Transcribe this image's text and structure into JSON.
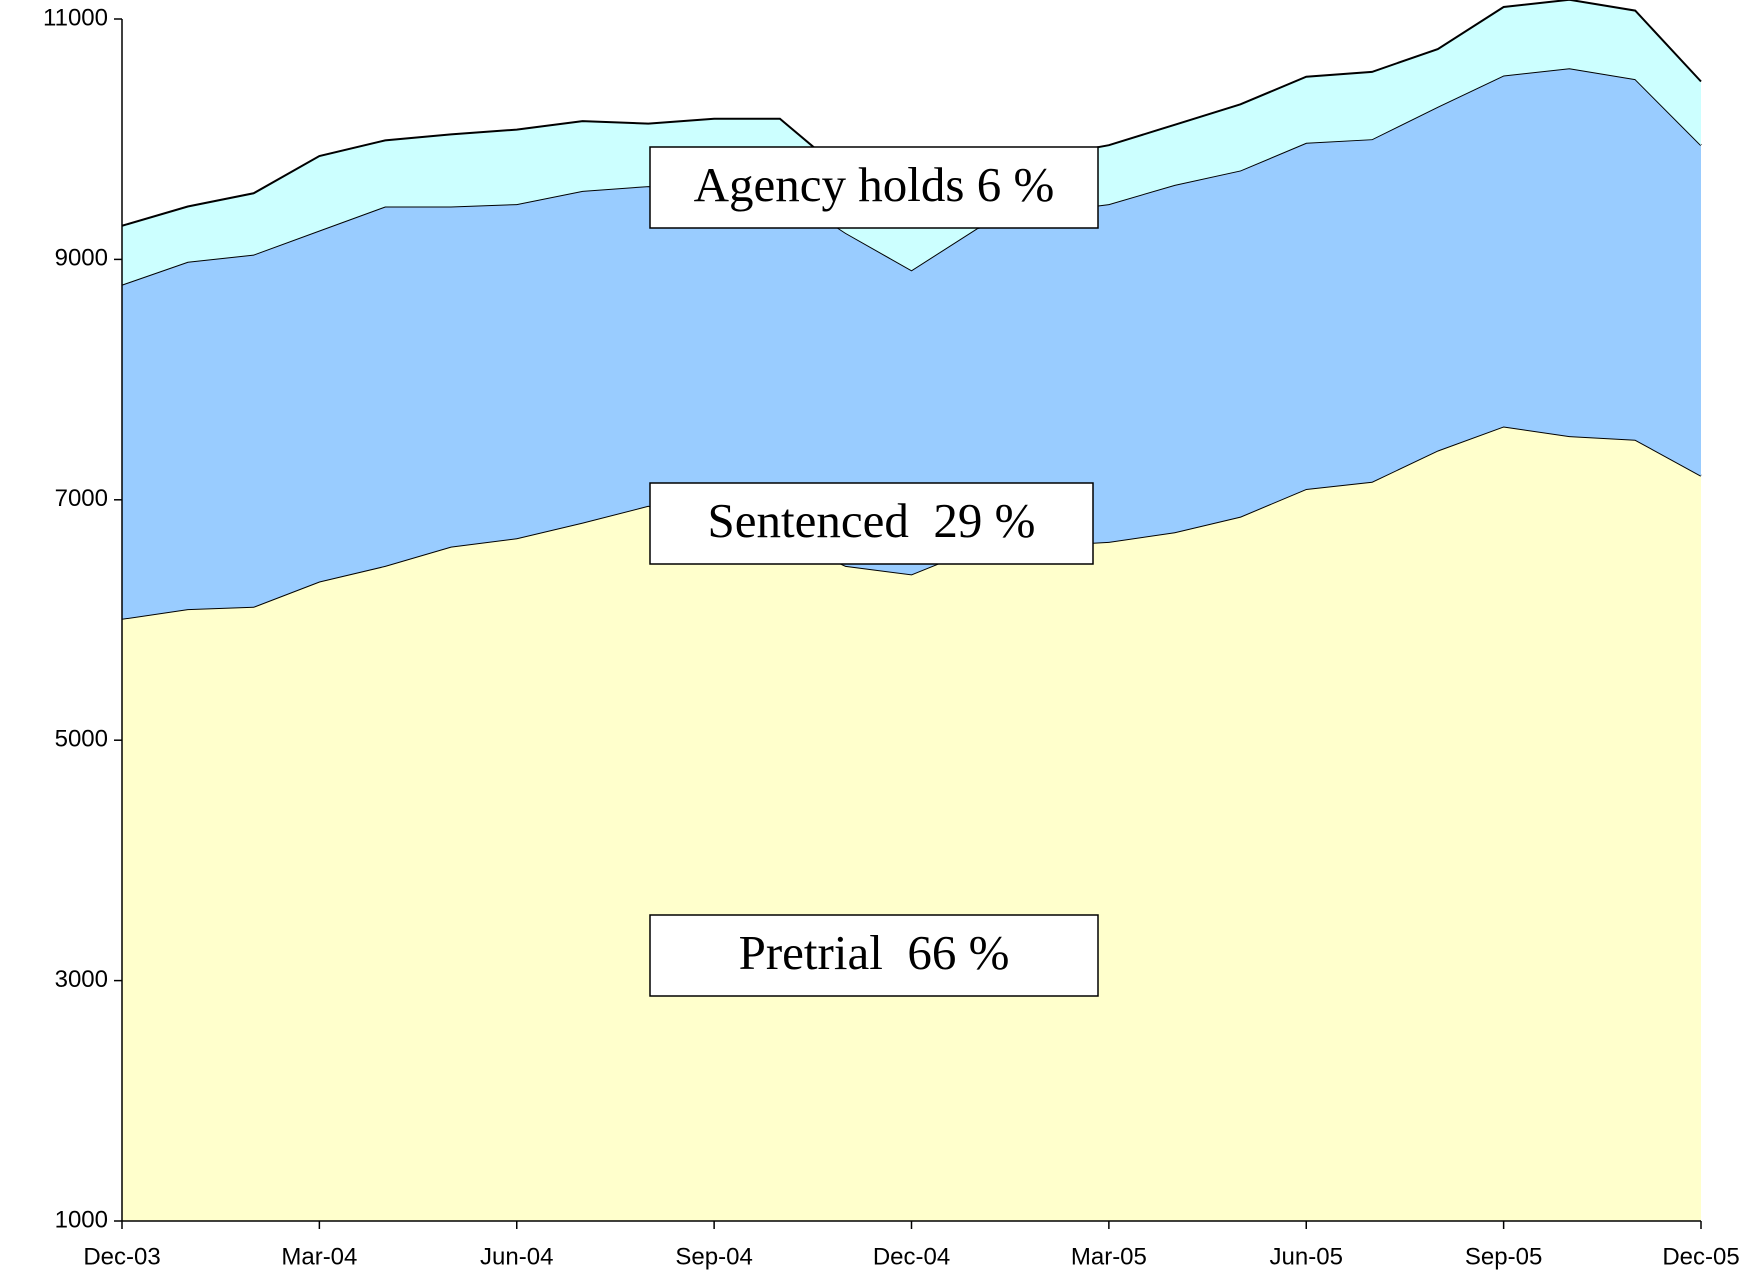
{
  "chart_data": {
    "type": "stacked_area",
    "categories": [
      "Dec-03",
      null,
      null,
      "Mar-04",
      null,
      null,
      "Jun-04",
      null,
      null,
      "Sep-04",
      null,
      null,
      "Dec-04",
      null,
      null,
      "Mar-05",
      null,
      null,
      "Jun-05",
      null,
      null,
      "Sep-05",
      null,
      null,
      "Dec-05"
    ],
    "series": [
      {
        "name": "Pretrial",
        "color": "#ffffcc",
        "values": [
          5010,
          5090,
          5110,
          5320,
          5450,
          5610,
          5680,
          5810,
          5950,
          5810,
          5700,
          5450,
          5380,
          5600,
          5620,
          5650,
          5730,
          5860,
          6090,
          6150,
          6410,
          6610,
          6530,
          6500,
          6200
        ]
      },
      {
        "name": "Sentenced",
        "color": "#99ccff",
        "values": [
          2780,
          2890,
          2930,
          2920,
          2990,
          2830,
          2780,
          2760,
          2660,
          2780,
          2880,
          2770,
          2530,
          2660,
          2770,
          2810,
          2890,
          2880,
          2880,
          2850,
          2860,
          2920,
          3060,
          3000,
          2750
        ]
      },
      {
        "name": "Agency holds",
        "color": "#ccffff",
        "values": [
          490,
          460,
          510,
          620,
          550,
          600,
          620,
          580,
          520,
          580,
          590,
          490,
          410,
          430,
          460,
          490,
          500,
          550,
          550,
          560,
          480,
          570,
          570,
          570,
          530
        ]
      }
    ],
    "annotations": [
      "Agency holds 6 %",
      "Sentenced  29 %",
      "Pretrial  66 %"
    ],
    "ylim": [
      1000,
      11000
    ],
    "yticks": [
      1000,
      3000,
      5000,
      7000,
      9000,
      11000
    ]
  }
}
